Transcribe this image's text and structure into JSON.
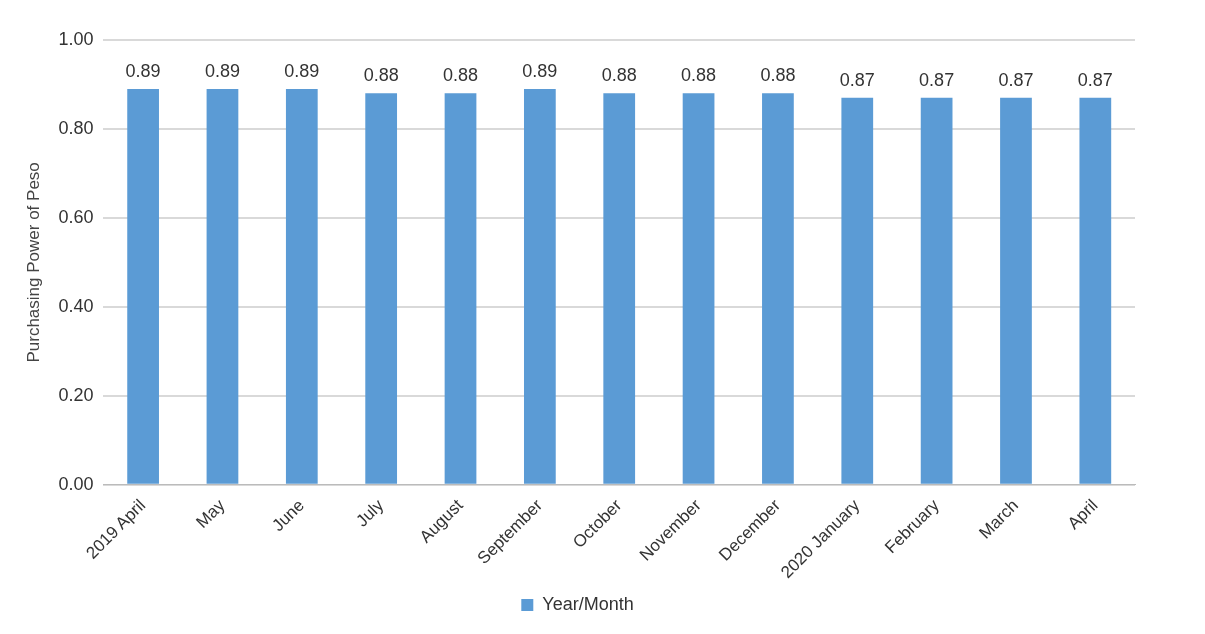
{
  "chart_data": {
    "type": "bar",
    "ylabel": "Purchasing Power of Peso",
    "categories": [
      "2019 April",
      "May",
      "June",
      "July",
      "August",
      "September",
      "October",
      "November",
      "December",
      "2020 January",
      "February",
      "March",
      "April"
    ],
    "series": [
      {
        "name": "Year/Month",
        "color": "#5b9bd5",
        "values": [
          0.89,
          0.89,
          0.89,
          0.88,
          0.88,
          0.89,
          0.88,
          0.88,
          0.88,
          0.87,
          0.87,
          0.87,
          0.87
        ]
      }
    ],
    "ylim": [
      0,
      1
    ],
    "yticks": [
      {
        "value": 0,
        "label": "0.00"
      },
      {
        "value": 0.2,
        "label": "0.20"
      },
      {
        "value": 0.4,
        "label": "0.40"
      },
      {
        "value": 0.6,
        "label": "0.60"
      },
      {
        "value": 0.8,
        "label": "0.80"
      },
      {
        "value": 1,
        "label": "1.00"
      }
    ],
    "grid": "y",
    "legend": "bottom",
    "data_labels": true
  }
}
